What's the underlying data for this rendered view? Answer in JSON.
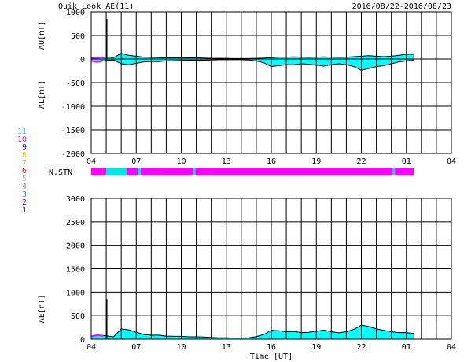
{
  "header": {
    "title": "Quik Look AE(11)",
    "date_range": "2016/08/22-2016/08/23"
  },
  "station_legend": [
    {
      "label": "11",
      "color": "#00e5e5"
    },
    {
      "label": "10",
      "color": "#ff00ff"
    },
    {
      "label": "9",
      "color": "#2222cc"
    },
    {
      "label": "8",
      "color": "#ffd400"
    },
    {
      "label": "7",
      "color": "#70e070"
    },
    {
      "label": "6",
      "color": "#ff0000"
    },
    {
      "label": "5",
      "color": "#c0c0c0"
    },
    {
      "label": "4",
      "color": "#888888"
    },
    {
      "label": "3",
      "color": "#00a0a0"
    },
    {
      "label": "2",
      "color": "#aa00aa"
    },
    {
      "label": "1",
      "color": "#0000ff"
    }
  ],
  "nstn_label": "N.STN",
  "xaxis_label": "Time [UT]",
  "colors": {
    "fill": "#00ffff",
    "magenta": "#ff00ff",
    "line": "#000000"
  },
  "chart_data": [
    {
      "type": "area",
      "title": "Quik Look AE(11)",
      "ylabel_upper": "AU[nT]",
      "ylabel_lower": "AL[nT]",
      "ylim": [
        -2000,
        1000
      ],
      "yticks": [
        1000,
        500,
        0,
        -500,
        -1000,
        -1500,
        -2000
      ],
      "xticks": [
        "04",
        "07",
        "10",
        "13",
        "16",
        "19",
        "22",
        "01",
        "04"
      ],
      "x_hours": [
        4,
        4.5,
        5,
        5.5,
        6,
        6.5,
        7,
        7.5,
        8,
        8.5,
        9,
        9.5,
        10,
        10.5,
        11,
        11.5,
        12,
        12.5,
        13,
        13.5,
        14,
        14.5,
        15,
        15.5,
        16,
        16.5,
        17,
        17.5,
        18,
        18.5,
        19,
        19.5,
        20,
        20.5,
        21,
        21.5,
        22,
        22.5,
        23,
        23.5,
        24,
        24.5,
        25,
        25.5
      ],
      "series": [
        {
          "name": "AU",
          "values": [
            20,
            25,
            40,
            30,
            120,
            80,
            60,
            40,
            35,
            30,
            25,
            25,
            30,
            25,
            25,
            20,
            15,
            15,
            15,
            10,
            10,
            10,
            15,
            20,
            30,
            40,
            40,
            45,
            40,
            35,
            40,
            45,
            40,
            35,
            40,
            50,
            60,
            70,
            60,
            50,
            60,
            80,
            100,
            100
          ]
        },
        {
          "name": "AL",
          "values": [
            -40,
            -60,
            -30,
            -20,
            -100,
            -120,
            -90,
            -60,
            -50,
            -55,
            -40,
            -35,
            -30,
            -25,
            -25,
            -25,
            -20,
            -15,
            -15,
            -15,
            -15,
            -20,
            -40,
            -80,
            -160,
            -140,
            -120,
            -120,
            -100,
            -110,
            -130,
            -150,
            -120,
            -100,
            -120,
            -160,
            -240,
            -200,
            -160,
            -140,
            -100,
            -60,
            -40,
            -20
          ]
        }
      ],
      "spike": {
        "x": 5.05,
        "value": 850
      }
    },
    {
      "type": "table",
      "name": "N.STN",
      "x_hours": [
        4,
        4.75,
        5,
        6.2,
        6.4,
        7.1,
        7.3,
        10.8,
        10.95,
        24.1,
        24.25,
        25.5
      ],
      "stations": [
        10,
        10,
        11,
        11,
        10,
        11,
        10,
        11,
        10,
        11,
        10,
        11
      ]
    },
    {
      "type": "area",
      "ylabel": "AE[nT]",
      "ylim": [
        0,
        3000
      ],
      "yticks": [
        3000,
        2500,
        2000,
        1500,
        1000,
        500,
        0
      ],
      "xticks": [
        "04",
        "07",
        "10",
        "13",
        "16",
        "19",
        "22",
        "01",
        "04"
      ],
      "x_hours": [
        4,
        4.5,
        5,
        5.5,
        6,
        6.5,
        7,
        7.5,
        8,
        8.5,
        9,
        9.5,
        10,
        10.5,
        11,
        11.5,
        12,
        12.5,
        13,
        13.5,
        14,
        14.5,
        15,
        15.5,
        16,
        16.5,
        17,
        17.5,
        18,
        18.5,
        19,
        19.5,
        20,
        20.5,
        21,
        21.5,
        22,
        22.5,
        23,
        23.5,
        24,
        24.5,
        25,
        25.5
      ],
      "series": [
        {
          "name": "AE",
          "values": [
            60,
            85,
            70,
            50,
            220,
            200,
            150,
            100,
            85,
            85,
            65,
            60,
            60,
            50,
            50,
            45,
            35,
            30,
            30,
            25,
            25,
            30,
            55,
            100,
            190,
            180,
            160,
            165,
            140,
            145,
            170,
            195,
            160,
            135,
            160,
            210,
            300,
            270,
            220,
            190,
            160,
            140,
            140,
            120
          ]
        }
      ],
      "spike": {
        "x": 5.05,
        "value": 850
      }
    }
  ]
}
